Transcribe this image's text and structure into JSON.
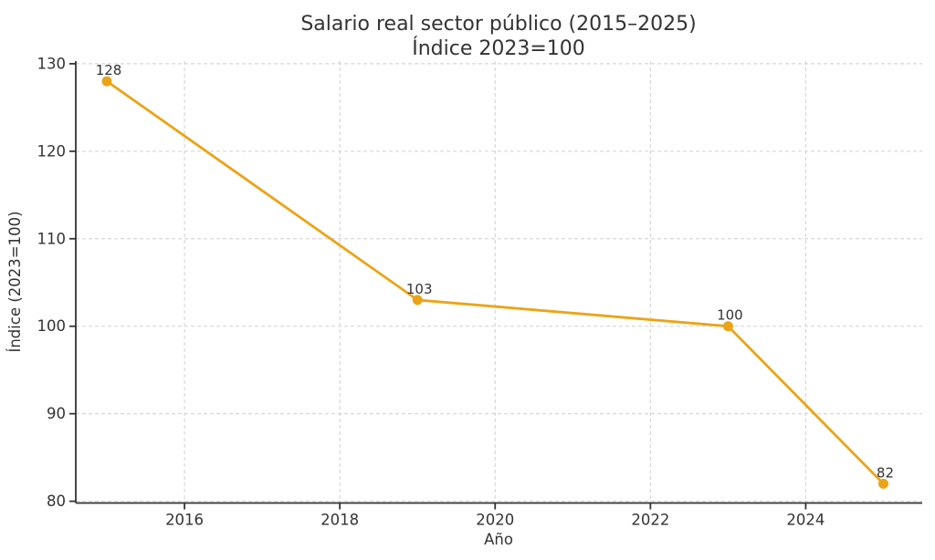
{
  "chart_data": {
    "type": "line",
    "title": "Salario real sector público (2015–2025)",
    "subtitle": "Índice 2023=100",
    "xlabel": "Año",
    "ylabel": "Índice (2023=100)",
    "x": [
      2015,
      2019,
      2023,
      2025
    ],
    "values": [
      128,
      103,
      100,
      82
    ],
    "point_labels": [
      "128",
      "103",
      "100",
      "82"
    ],
    "xticks": [
      2016,
      2018,
      2020,
      2022,
      2024
    ],
    "yticks": [
      80,
      90,
      100,
      110,
      120,
      130
    ],
    "xtick_labels": [
      "2016",
      "2018",
      "2020",
      "2022",
      "2024"
    ],
    "ytick_labels": [
      "80",
      "90",
      "100",
      "110",
      "120",
      "130"
    ],
    "xlim": [
      2014.6,
      2025.5
    ],
    "ylim": [
      79.8,
      130.3
    ],
    "grid": true,
    "legend": false,
    "colors": {
      "line": "#EBA417",
      "marker": "#EBA417",
      "grid": "#D7D7D7",
      "spine": "#333333",
      "text": "#333333",
      "background": "#FFFFFF"
    }
  }
}
